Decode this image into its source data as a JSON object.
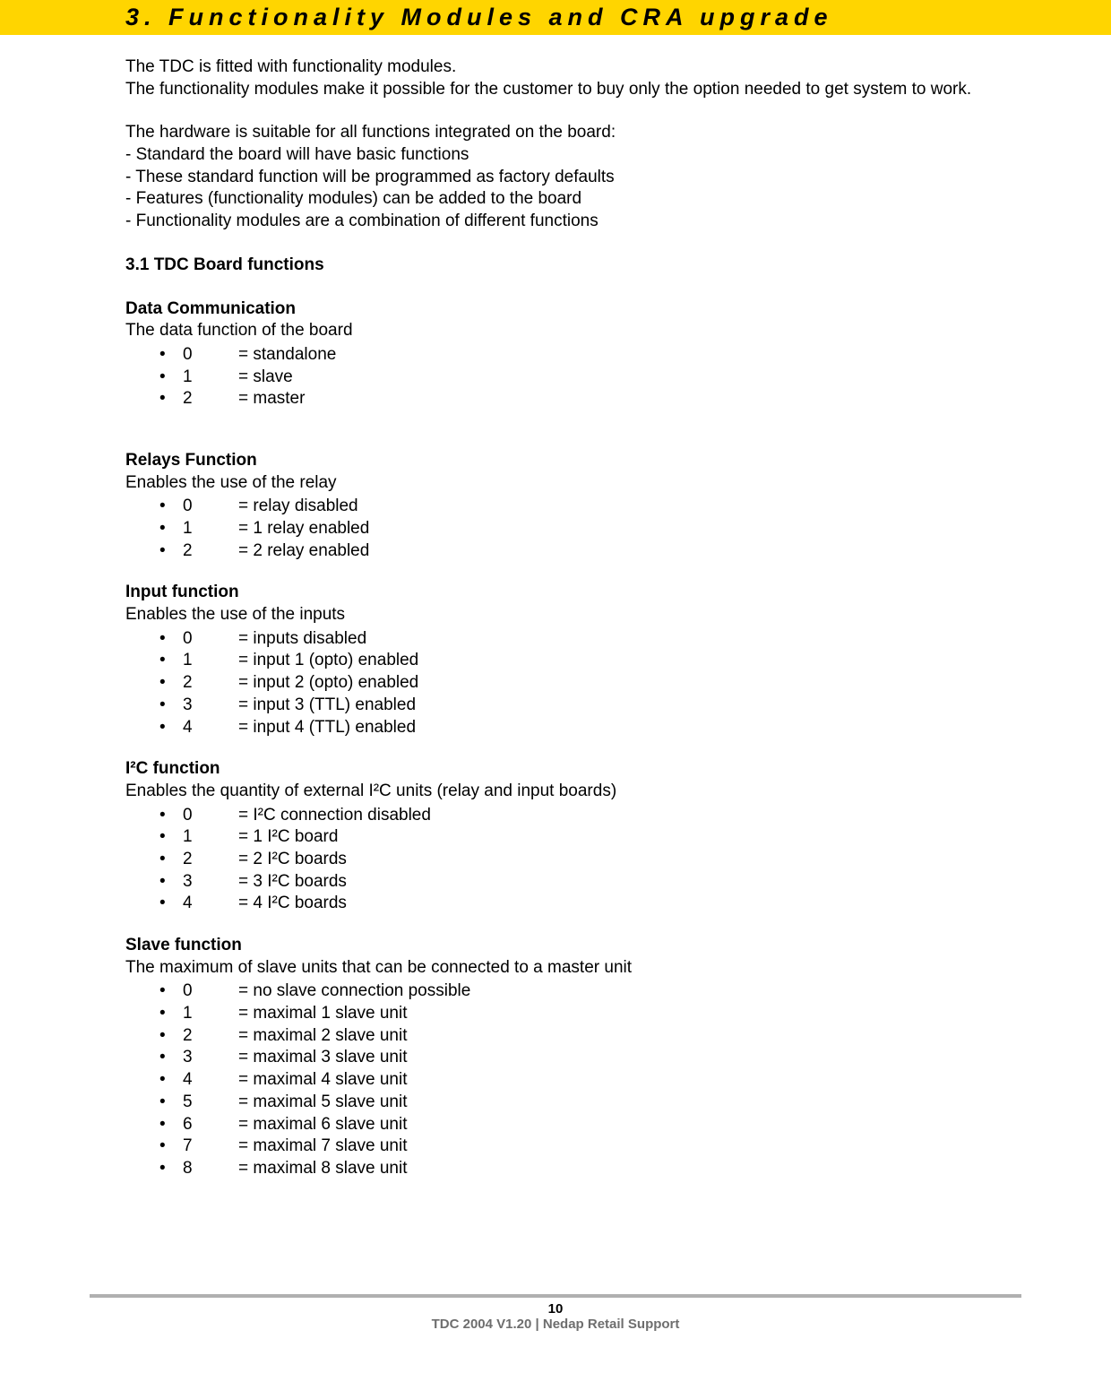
{
  "header": {
    "title": "3. Functionality Modules and CRA upgrade"
  },
  "intro": {
    "line1": "The TDC is fitted with functionality modules.",
    "line2": "The functionality modules make it possible for the customer to buy only the option needed to get system to work."
  },
  "hardware": {
    "lead": "The hardware is suitable for all functions integrated on the board:",
    "items": [
      "- Standard the board will have basic functions",
      "- These standard function will be programmed as factory defaults",
      "- Features (functionality modules) can be added to the board",
      "- Functionality modules are a combination of different functions"
    ]
  },
  "section31": "3.1 TDC Board functions",
  "dataComm": {
    "title": "Data Communication",
    "desc": "The data function of the board",
    "rows": [
      {
        "n": "0",
        "d": "= standalone"
      },
      {
        "n": "1",
        "d": "= slave"
      },
      {
        "n": "2",
        "d": "= master"
      }
    ]
  },
  "relays": {
    "title": "Relays Function",
    "desc": "Enables the use of the relay",
    "rows": [
      {
        "n": "0",
        "d": "= relay disabled"
      },
      {
        "n": "1",
        "d": "= 1 relay enabled"
      },
      {
        "n": "2",
        "d": "= 2 relay enabled"
      }
    ]
  },
  "input": {
    "title": "Input function",
    "desc": "Enables the use of the inputs",
    "rows": [
      {
        "n": "0",
        "d": "= inputs disabled"
      },
      {
        "n": "1",
        "d": "= input 1 (opto) enabled"
      },
      {
        "n": "2",
        "d": "= input 2 (opto) enabled"
      },
      {
        "n": "3",
        "d": "= input 3 (TTL) enabled"
      },
      {
        "n": "4",
        "d": "= input 4 (TTL) enabled"
      }
    ]
  },
  "i2c": {
    "title": "I²C function",
    "desc": "Enables the quantity of external I²C units (relay and input boards)",
    "rows": [
      {
        "n": "0",
        "d": "= I²C connection disabled"
      },
      {
        "n": "1",
        "d": "= 1 I²C board"
      },
      {
        "n": "2",
        "d": "= 2 I²C boards"
      },
      {
        "n": "3",
        "d": "= 3 I²C boards"
      },
      {
        "n": "4",
        "d": "= 4 I²C boards"
      }
    ]
  },
  "slave": {
    "title": "Slave function",
    "desc": "The maximum of slave units that can be connected to a master unit",
    "rows": [
      {
        "n": "0",
        "d": "= no slave connection possible"
      },
      {
        "n": "1",
        "d": "= maximal 1 slave unit"
      },
      {
        "n": "2",
        "d": "= maximal 2 slave unit"
      },
      {
        "n": "3",
        "d": "= maximal 3 slave unit"
      },
      {
        "n": "4",
        "d": "= maximal 4 slave unit"
      },
      {
        "n": "5",
        "d": "= maximal 5 slave unit"
      },
      {
        "n": "6",
        "d": "= maximal 6 slave unit"
      },
      {
        "n": "7",
        "d": "= maximal 7 slave unit"
      },
      {
        "n": "8",
        "d": "= maximal 8 slave unit"
      }
    ]
  },
  "footer": {
    "page": "10",
    "line": "TDC 2004 V1.20 | Nedap Retail Support"
  },
  "bullets": {
    "open": "•",
    "solid": "•"
  }
}
